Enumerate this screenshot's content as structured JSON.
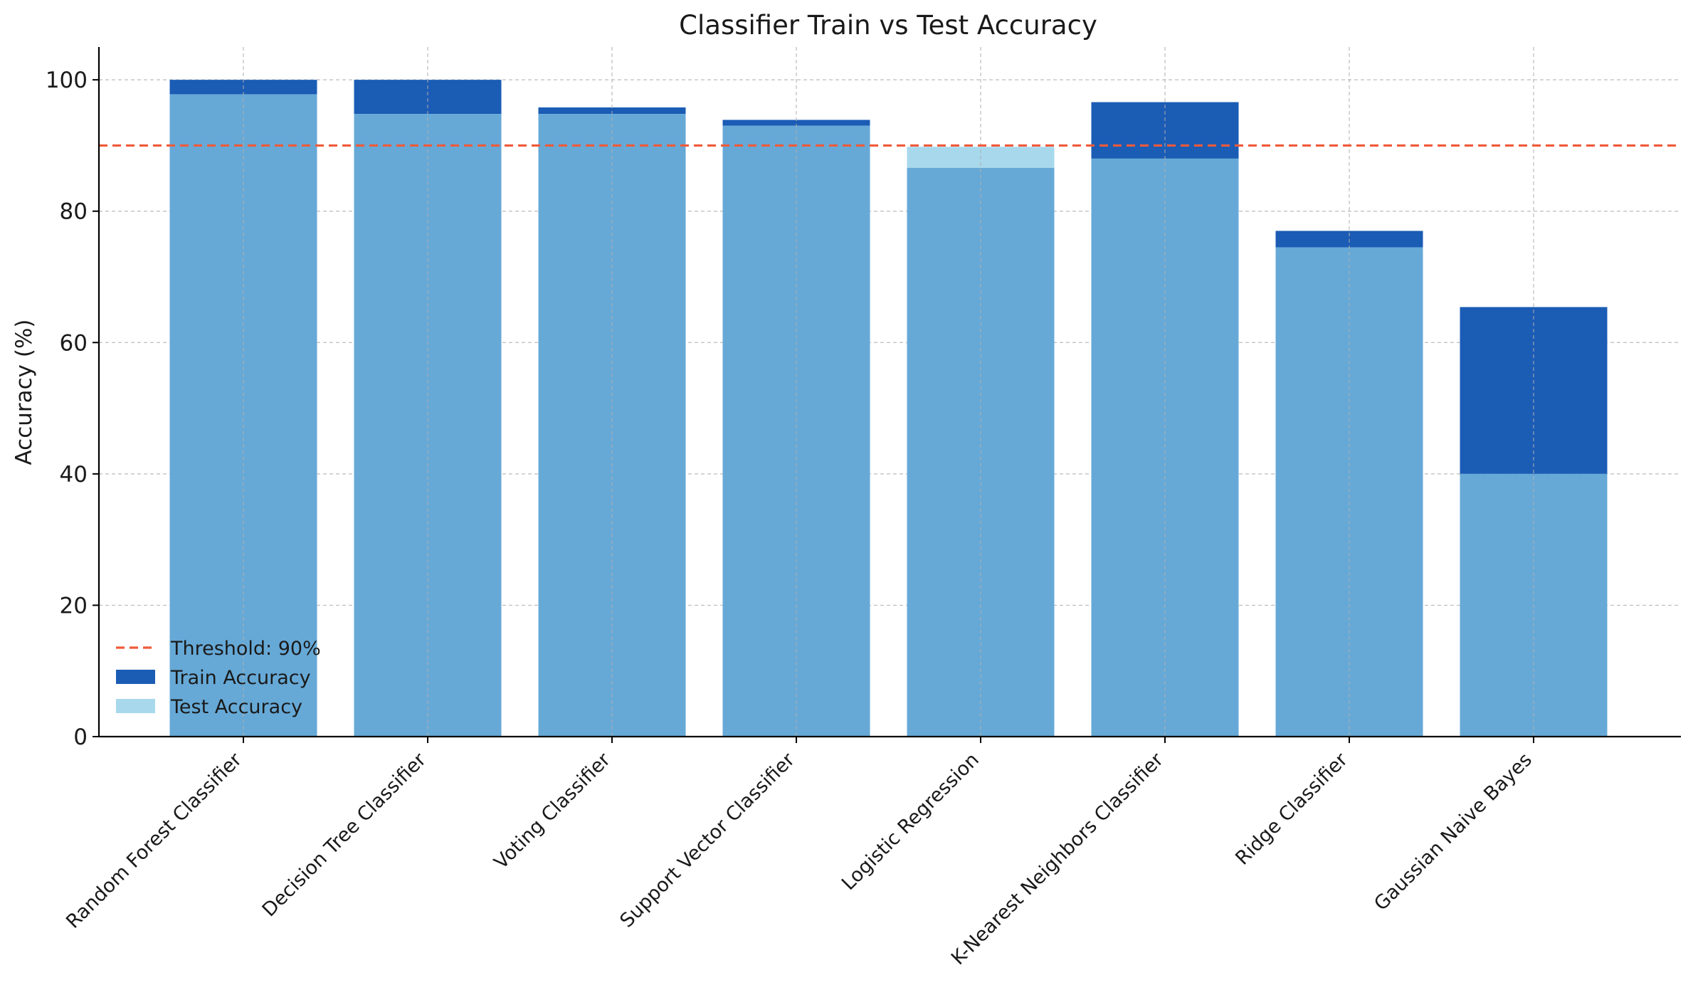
{
  "chart_data": {
    "type": "bar",
    "title": "Classifier Train vs Test Accuracy",
    "xlabel": "",
    "ylabel": "Accuracy (%)",
    "categories": [
      "Random Forest Classifier",
      "Decision Tree Classifier",
      "Voting Classifier",
      "Support Vector Classifier",
      "Logistic Regression",
      "K-Nearest Neighbors Classifier",
      "Ridge Classifier",
      "Gaussian Naive Bayes"
    ],
    "series": [
      {
        "name": "Train Accuracy",
        "color": "#1b5cb5",
        "values": [
          100,
          100,
          95.8,
          93.9,
          86.6,
          96.6,
          77.0,
          65.4
        ]
      },
      {
        "name": "Test Accuracy",
        "color": "#a8d8ec",
        "values": [
          97.8,
          94.8,
          94.8,
          93.0,
          89.8,
          88.0,
          74.5,
          40.0
        ]
      }
    ],
    "overlap_color": "#66a9d7",
    "threshold": {
      "value": 90,
      "label": "Threshold: 90%",
      "color": "#f05a3a"
    },
    "ylim": [
      0,
      105
    ],
    "yticks": [
      0,
      20,
      40,
      60,
      80,
      100
    ],
    "grid": true,
    "legend": "lower-left"
  }
}
